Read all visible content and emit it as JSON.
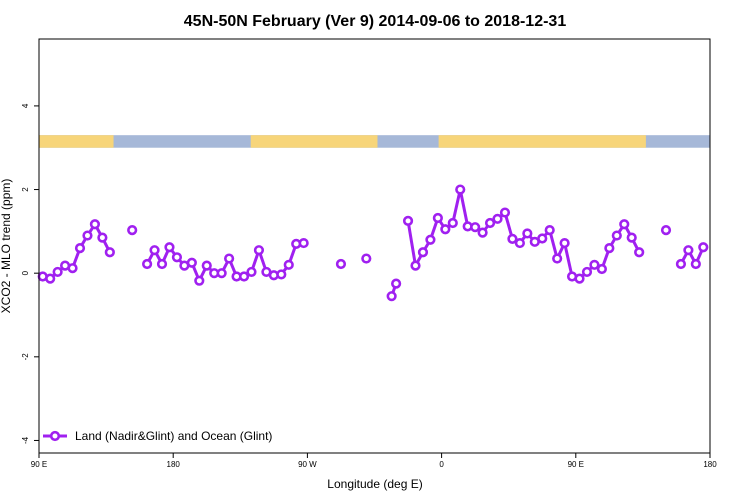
{
  "chart_data": {
    "type": "line",
    "title": "45N-50N February (Ver 9)   2014-09-06 to 2018-12-31",
    "xlabel": "Longitude (deg E)",
    "ylabel": "XCO2 - MLO trend (ppm)",
    "xlim": [
      90,
      540
    ],
    "ylim": [
      -4.3,
      5.6
    ],
    "x_ticks": [
      {
        "value": 90,
        "label": "90 E"
      },
      {
        "value": 180,
        "label": "180"
      },
      {
        "value": 270,
        "label": "90 W"
      },
      {
        "value": 360,
        "label": "0"
      },
      {
        "value": 450,
        "label": "90 E"
      },
      {
        "value": 540,
        "label": "180"
      }
    ],
    "y_ticks": [
      {
        "value": -4,
        "label": "-4"
      },
      {
        "value": -2,
        "label": "-2"
      },
      {
        "value": 0,
        "label": "0"
      },
      {
        "value": 2,
        "label": "2"
      },
      {
        "value": 4,
        "label": "4"
      }
    ],
    "legend": {
      "position": "bottom-left",
      "label": "Land (Nadir&Glint) and Ocean (Glint)"
    },
    "colors": {
      "series": "#a020f0",
      "land": "#f7d57a",
      "ocean": "#a6b8d8"
    },
    "land_ocean_strip": {
      "y_range": [
        3.0,
        3.3
      ],
      "land_segments": [
        [
          90,
          140
        ],
        [
          232,
          317
        ],
        [
          358,
          497
        ]
      ]
    },
    "series": [
      {
        "name": "Land (Nadir&Glint) and Ocean (Glint)",
        "x": [
          92.5,
          97.5,
          102.5,
          107.5,
          112.5,
          117.5,
          122.5,
          127.5,
          132.5,
          137.5,
          null,
          152.5,
          null,
          162.5,
          167.5,
          172.5,
          177.5,
          182.5,
          187.5,
          192.5,
          197.5,
          202.5,
          207.5,
          212.5,
          217.5,
          222.5,
          227.5,
          232.5,
          237.5,
          242.5,
          247.5,
          252.5,
          257.5,
          262.5,
          267.5,
          272.5,
          null,
          292.5,
          null,
          309.5,
          null,
          326.5,
          329.5,
          null,
          337.5,
          342.5,
          347.5,
          352.5,
          357.5,
          362.5,
          367.5,
          372.5,
          377.5,
          382.5,
          387.5,
          392.5,
          397.5,
          402.5,
          407.5,
          412.5,
          417.5,
          422.5,
          427.5,
          432.5,
          437.5,
          442.5,
          447.5,
          452.5,
          457.5,
          462.5,
          467.5,
          472.5,
          477.5,
          482.5,
          487.5,
          492.5,
          497.5,
          502.5,
          null,
          510.5,
          null,
          520.5,
          525.5,
          530.5,
          535.5
        ],
        "y": [
          -0.08,
          -0.13,
          0.03,
          0.18,
          0.12,
          0.6,
          0.9,
          1.17,
          0.85,
          0.5,
          null,
          1.03,
          null,
          0.22,
          0.55,
          0.22,
          0.62,
          0.38,
          0.18,
          0.25,
          -0.18,
          0.18,
          0.0,
          0.0,
          0.35,
          -0.08,
          -0.08,
          0.03,
          0.55,
          0.03,
          -0.05,
          -0.03,
          0.2,
          0.7,
          0.72,
          null,
          null,
          0.22,
          null,
          0.35,
          null,
          -0.55,
          -0.25,
          null,
          1.25,
          0.18,
          0.5,
          0.8,
          1.32,
          1.05,
          1.2,
          2.0,
          1.12,
          1.1,
          0.97,
          1.2,
          1.3,
          1.45,
          0.82,
          0.72,
          0.95,
          0.75,
          0.83,
          1.03,
          0.35,
          0.72,
          -0.08,
          -0.13,
          0.03,
          0.2,
          0.1,
          0.6,
          0.9,
          1.17,
          0.85,
          0.5,
          null,
          null,
          null,
          1.03,
          null,
          0.22,
          0.55,
          0.22,
          0.62
        ]
      }
    ]
  }
}
